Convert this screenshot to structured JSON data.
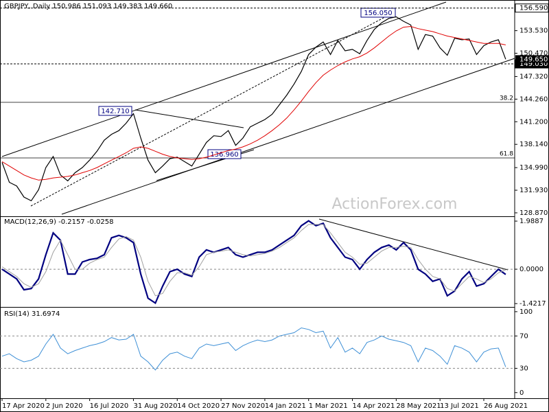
{
  "chart_data": [
    {
      "type": "line",
      "title": "GBPJPY, Daily  150.986 151.093 149.383 149.660",
      "categories": [
        "17 Apr 2020",
        null,
        null,
        null,
        null,
        null,
        "2 Jun 2020",
        null,
        null,
        null,
        null,
        null,
        "16 Jul 2020",
        null,
        null,
        null,
        null,
        null,
        "31 Aug 2020",
        null,
        null,
        null,
        null,
        null,
        "14 Oct 2020",
        null,
        null,
        null,
        null,
        null,
        "27 Nov 2020",
        null,
        null,
        null,
        null,
        null,
        "14 Jan 2021",
        null,
        null,
        null,
        null,
        null,
        "1 Mar 2021",
        null,
        null,
        null,
        null,
        null,
        "14 Apr 2021",
        null,
        null,
        null,
        null,
        null,
        "28 May 2021",
        null,
        null,
        null,
        null,
        null,
        "13 Jul 2021",
        null,
        null,
        null,
        null,
        null,
        "26 Aug 2021",
        null,
        null,
        null
      ],
      "series": [
        {
          "color": "#000000",
          "values": [
            135.7,
            133.0,
            132.5,
            131.0,
            130.5,
            132.0,
            135.0,
            136.5,
            134.0,
            133.2,
            134.3,
            135.0,
            136.0,
            137.2,
            138.7,
            139.5,
            140.0,
            141.0,
            142.3,
            139.0,
            136.0,
            134.3,
            135.2,
            136.2,
            136.4,
            135.8,
            135.2,
            136.8,
            138.4,
            139.3,
            139.2,
            140.0,
            138.0,
            139.0,
            140.5,
            141.0,
            141.5,
            142.2,
            143.5,
            144.8,
            146.3,
            148.0,
            150.3,
            151.3,
            152.0,
            150.3,
            152.2,
            150.8,
            151.0,
            150.4,
            152.2,
            153.7,
            154.6,
            155.2,
            155.4,
            154.8,
            154.3,
            151.0,
            153.0,
            152.8,
            151.2,
            150.2,
            152.5,
            152.3,
            152.4,
            150.3,
            151.5,
            152.0,
            152.3,
            149.66
          ]
        },
        {
          "color": "#e00000",
          "values": [
            135.8,
            135.2,
            134.6,
            134.0,
            133.6,
            133.3,
            133.4,
            133.6,
            133.7,
            133.8,
            134.0,
            134.3,
            134.6,
            135.0,
            135.5,
            136.0,
            136.5,
            137.0,
            137.6,
            137.8,
            137.6,
            137.2,
            136.8,
            136.5,
            136.3,
            136.2,
            136.1,
            136.2,
            136.4,
            136.7,
            137.0,
            137.3,
            137.5,
            137.8,
            138.2,
            138.7,
            139.3,
            140.0,
            140.8,
            141.7,
            142.8,
            144.0,
            145.3,
            146.5,
            147.5,
            148.2,
            148.8,
            149.3,
            149.7,
            150.0,
            150.5,
            151.2,
            152.0,
            152.8,
            153.5,
            154.0,
            154.1,
            153.8,
            153.6,
            153.4,
            153.1,
            152.8,
            152.6,
            152.4,
            152.2,
            152.0,
            151.8,
            151.8,
            151.8,
            151.6
          ]
        }
      ],
      "ylim": [
        128.4,
        157.4
      ],
      "yticks": [
        {
          "value": 156.59,
          "label": "156.590"
        },
        {
          "value": 153.53,
          "label": "153.530"
        },
        {
          "value": 150.47,
          "label": "150.470"
        },
        {
          "value": 147.32,
          "label": "147.320"
        },
        {
          "value": 144.26,
          "label": "144.260"
        },
        {
          "value": 141.2,
          "label": "141.200"
        },
        {
          "value": 138.14,
          "label": "138.140"
        },
        {
          "value": 134.99,
          "label": "134.990"
        },
        {
          "value": 131.93,
          "label": "131.930"
        },
        {
          "value": 128.87,
          "label": "128.870"
        }
      ],
      "levels": [
        {
          "value": 156.59,
          "label": "156.590"
        },
        {
          "value": 149.03,
          "label": "149.030"
        }
      ],
      "last_price": {
        "value": 149.65,
        "label": "149.650"
      },
      "annotations": [
        "156.050",
        "142.710",
        "136.960",
        "38.2",
        "61.8",
        "ActionForex.com"
      ]
    },
    {
      "type": "line",
      "title": "MACD(12,26,9) -0.2157 -0.0258",
      "series": [
        {
          "color": "#000080",
          "values": [
            0.0,
            -0.2,
            -0.4,
            -0.85,
            -0.8,
            -0.4,
            0.6,
            1.5,
            1.2,
            -0.2,
            -0.2,
            0.3,
            0.4,
            0.45,
            0.6,
            1.3,
            1.4,
            1.3,
            1.1,
            -0.2,
            -1.2,
            -1.4,
            -0.7,
            -0.1,
            0.0,
            -0.2,
            -0.3,
            0.5,
            0.8,
            0.7,
            0.8,
            0.9,
            0.6,
            0.5,
            0.6,
            0.7,
            0.7,
            0.8,
            1.0,
            1.2,
            1.4,
            1.8,
            2.0,
            1.8,
            1.9,
            1.3,
            0.9,
            0.5,
            0.4,
            0.0,
            0.4,
            0.7,
            0.9,
            1.0,
            0.8,
            1.1,
            0.8,
            0.0,
            -0.2,
            -0.5,
            -0.4,
            -1.1,
            -0.9,
            -0.4,
            -0.1,
            -0.7,
            -0.6,
            -0.3,
            0.0,
            -0.2157
          ]
        },
        {
          "color": "#a0a0a0",
          "values": [
            0.1,
            -0.1,
            -0.3,
            -0.6,
            -0.75,
            -0.6,
            -0.1,
            0.7,
            1.2,
            0.6,
            0.0,
            0.0,
            0.25,
            0.4,
            0.5,
            0.9,
            1.25,
            1.35,
            1.2,
            0.5,
            -0.5,
            -1.1,
            -1.0,
            -0.5,
            -0.15,
            -0.15,
            -0.25,
            0.1,
            0.6,
            0.7,
            0.75,
            0.8,
            0.7,
            0.6,
            0.55,
            0.6,
            0.65,
            0.75,
            0.9,
            1.1,
            1.3,
            1.6,
            1.85,
            1.85,
            1.85,
            1.5,
            1.1,
            0.7,
            0.5,
            0.2,
            0.25,
            0.5,
            0.75,
            0.9,
            0.9,
            0.95,
            0.9,
            0.4,
            0.0,
            -0.3,
            -0.4,
            -0.8,
            -0.9,
            -0.6,
            -0.3,
            -0.4,
            -0.55,
            -0.4,
            -0.15,
            -0.0258
          ]
        }
      ],
      "ylim": [
        -1.56,
        2.16
      ],
      "yticks": [
        1.9887,
        {
          "value": 0.0,
          "label": "0.0000"
        },
        -1.4217
      ]
    },
    {
      "type": "line",
      "title": "RSI(14) 31.6974",
      "series": [
        {
          "color": "#3d8fd6",
          "values": [
            45,
            48,
            42,
            38,
            40,
            45,
            60,
            72,
            55,
            48,
            52,
            55,
            58,
            60,
            63,
            68,
            65,
            66,
            72,
            45,
            38,
            28,
            40,
            48,
            50,
            45,
            42,
            55,
            60,
            58,
            60,
            62,
            52,
            58,
            62,
            65,
            63,
            65,
            70,
            72,
            74,
            80,
            78,
            74,
            76,
            55,
            68,
            50,
            55,
            48,
            62,
            65,
            70,
            66,
            64,
            62,
            58,
            38,
            55,
            52,
            45,
            35,
            58,
            55,
            50,
            38,
            50,
            54,
            55,
            31.6974
          ]
        }
      ],
      "ylim": [
        -7,
        105
      ],
      "yticks": [
        100,
        70,
        30,
        0
      ],
      "grid": [
        70,
        30
      ]
    }
  ]
}
